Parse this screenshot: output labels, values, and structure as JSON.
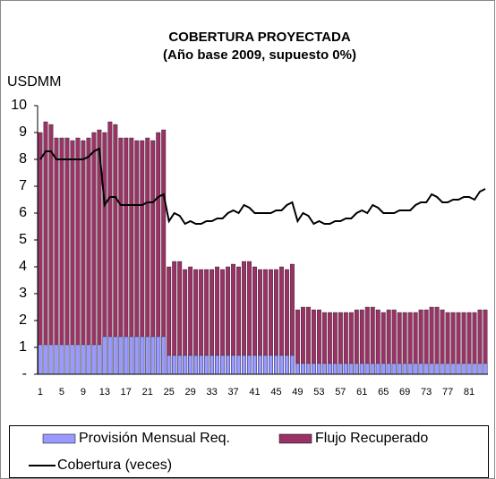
{
  "chart_data": {
    "type": "bar-line",
    "title": [
      "COBERTURA PROYECTADA",
      "(Año base 2009, supuesto 0%)"
    ],
    "y_label": "USDMM",
    "categories": [
      1,
      null,
      null,
      null,
      5,
      null,
      null,
      null,
      9,
      null,
      null,
      null,
      13,
      null,
      null,
      null,
      17,
      null,
      null,
      null,
      21,
      null,
      null,
      null,
      25,
      null,
      null,
      null,
      29,
      null,
      null,
      null,
      33,
      null,
      null,
      null,
      37,
      null,
      null,
      null,
      41,
      null,
      null,
      null,
      45,
      null,
      null,
      null,
      49,
      null,
      null,
      null,
      53,
      null,
      null,
      null,
      57,
      null,
      null,
      null,
      61,
      null,
      null,
      null,
      65,
      null,
      null,
      null,
      69,
      null,
      null,
      null,
      73,
      null,
      null,
      null,
      77,
      null,
      null,
      null,
      81,
      null,
      null,
      null
    ],
    "series": [
      {
        "name": "Provisión Mensual Req.",
        "kind": "bar",
        "color": "#9999ff",
        "values": [
          1.1,
          1.1,
          1.1,
          1.1,
          1.1,
          1.1,
          1.1,
          1.1,
          1.1,
          1.1,
          1.1,
          1.1,
          1.4,
          1.4,
          1.4,
          1.4,
          1.4,
          1.4,
          1.4,
          1.4,
          1.4,
          1.4,
          1.4,
          1.4,
          0.7,
          0.7,
          0.7,
          0.7,
          0.7,
          0.7,
          0.7,
          0.7,
          0.7,
          0.7,
          0.7,
          0.7,
          0.7,
          0.7,
          0.7,
          0.7,
          0.7,
          0.7,
          0.7,
          0.7,
          0.7,
          0.7,
          0.7,
          0.7,
          0.4,
          0.4,
          0.4,
          0.4,
          0.4,
          0.4,
          0.4,
          0.4,
          0.4,
          0.4,
          0.4,
          0.4,
          0.4,
          0.4,
          0.4,
          0.4,
          0.4,
          0.4,
          0.4,
          0.4,
          0.4,
          0.4,
          0.4,
          0.4,
          0.4,
          0.4,
          0.4,
          0.4,
          0.4,
          0.4,
          0.4,
          0.4,
          0.4,
          0.4,
          0.4,
          0.4
        ]
      },
      {
        "name": "Flujo Recuperado",
        "kind": "bar",
        "color": "#993366",
        "values": [
          9.0,
          9.4,
          9.3,
          8.8,
          8.8,
          8.8,
          8.7,
          8.8,
          8.7,
          8.8,
          9.0,
          9.1,
          9.0,
          9.4,
          9.3,
          8.8,
          8.8,
          8.8,
          8.7,
          8.7,
          8.8,
          8.7,
          9.0,
          9.1,
          4.0,
          4.2,
          4.2,
          3.9,
          4.0,
          3.9,
          3.9,
          3.9,
          3.9,
          4.0,
          3.9,
          4.0,
          4.1,
          4.0,
          4.2,
          4.2,
          4.0,
          3.9,
          3.9,
          3.9,
          3.9,
          4.0,
          3.9,
          4.1,
          2.4,
          2.5,
          2.5,
          2.4,
          2.4,
          2.3,
          2.3,
          2.3,
          2.3,
          2.3,
          2.3,
          2.4,
          2.4,
          2.5,
          2.5,
          2.4,
          2.3,
          2.4,
          2.4,
          2.3,
          2.3,
          2.3,
          2.3,
          2.4,
          2.4,
          2.5,
          2.5,
          2.4,
          2.3,
          2.3,
          2.3,
          2.3,
          2.3,
          2.3,
          2.4,
          2.4
        ]
      },
      {
        "name": "Cobertura (veces)",
        "kind": "line",
        "color": "#000000",
        "values": [
          8.0,
          8.3,
          8.3,
          8.0,
          8.0,
          8.0,
          8.0,
          8.0,
          8.0,
          8.1,
          8.3,
          8.4,
          6.3,
          6.6,
          6.6,
          6.3,
          6.3,
          6.3,
          6.3,
          6.3,
          6.4,
          6.4,
          6.6,
          6.7,
          5.7,
          6.0,
          5.9,
          5.6,
          5.7,
          5.6,
          5.6,
          5.7,
          5.7,
          5.8,
          5.8,
          6.0,
          6.1,
          6.0,
          6.3,
          6.2,
          6.0,
          6.0,
          6.0,
          6.0,
          6.1,
          6.1,
          6.3,
          6.4,
          5.7,
          6.0,
          5.9,
          5.6,
          5.7,
          5.6,
          5.6,
          5.7,
          5.7,
          5.8,
          5.8,
          6.0,
          6.1,
          6.0,
          6.3,
          6.2,
          6.0,
          6.0,
          6.0,
          6.1,
          6.1,
          6.1,
          6.3,
          6.4,
          6.4,
          6.7,
          6.6,
          6.4,
          6.4,
          6.5,
          6.5,
          6.6,
          6.6,
          6.5,
          6.8,
          6.9
        ]
      }
    ],
    "ylim": [
      0,
      10
    ],
    "yticks": [
      {
        "value": 0,
        "label": "-"
      },
      1,
      2,
      3,
      4,
      5,
      6,
      7,
      8,
      9,
      10
    ],
    "grid": false
  }
}
